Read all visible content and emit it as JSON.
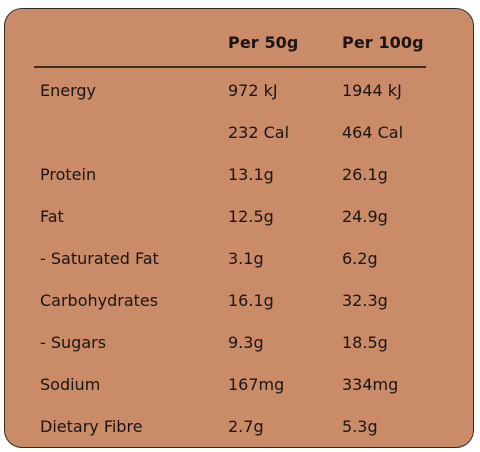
{
  "table": {
    "headers": [
      "",
      "Per 50g",
      "Per 100g"
    ],
    "rows": [
      {
        "label": "Energy",
        "per50": "972 kJ",
        "per100": "1944 kJ"
      },
      {
        "label": "",
        "per50": "232 Cal",
        "per100": "464 Cal"
      },
      {
        "label": "Protein",
        "per50": "13.1g",
        "per100": "26.1g"
      },
      {
        "label": "Fat",
        "per50": "12.5g",
        "per100": "24.9g"
      },
      {
        "label": "- Saturated Fat",
        "per50": "3.1g",
        "per100": "6.2g"
      },
      {
        "label": "Carbohydrates",
        "per50": "16.1g",
        "per100": "32.3g"
      },
      {
        "label": "- Sugars",
        "per50": "9.3g",
        "per100": "18.5g"
      },
      {
        "label": "Sodium",
        "per50": "167mg",
        "per100": "334mg"
      },
      {
        "label": "Dietary Fibre",
        "per50": "2.7g",
        "per100": "5.3g"
      }
    ]
  },
  "colors": {
    "panel_background": "#c98b68",
    "text": "#1b1410",
    "border": "#3b2a20"
  }
}
